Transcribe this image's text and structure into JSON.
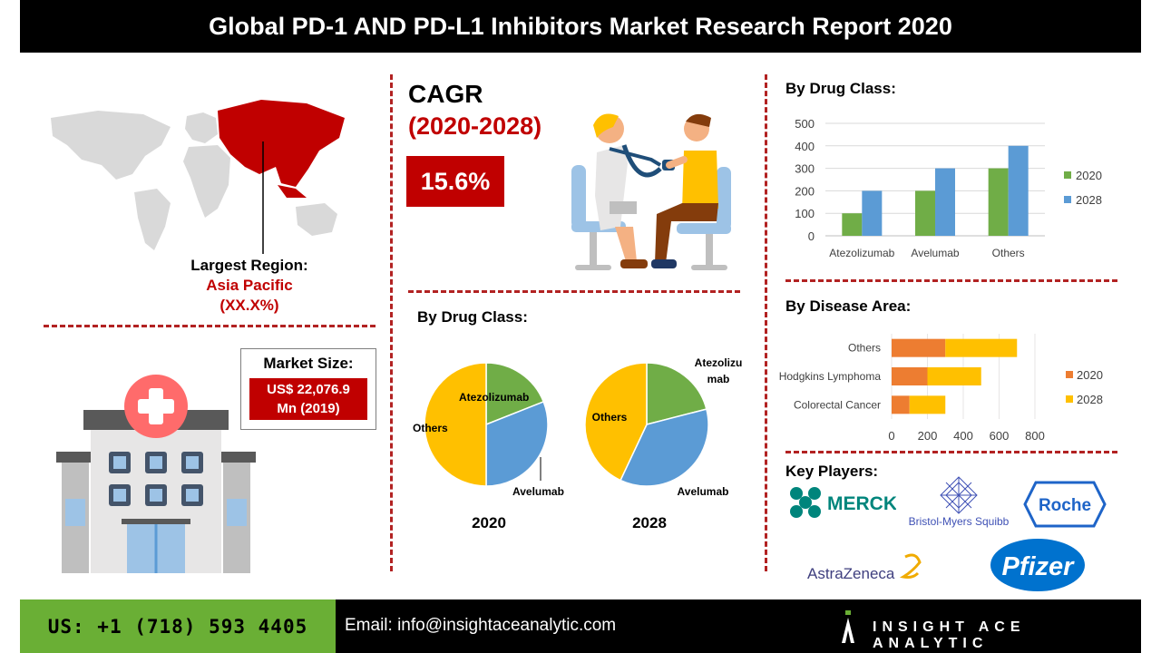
{
  "header": {
    "title": "Global PD-1 AND PD-L1 Inhibitors Market Research Report 2020"
  },
  "region": {
    "label": "Largest Region:",
    "name": "Asia Pacific",
    "share": "(XX.X%)"
  },
  "market_size": {
    "label": "Market Size:",
    "value_line1": "US$ 22,076.9",
    "value_line2": "Mn  (2019)"
  },
  "cagr": {
    "title": "CAGR",
    "period": "(2020-2028)",
    "value": "15.6%"
  },
  "pie_section": {
    "title": "By Drug Class:"
  },
  "bar_section": {
    "title": "By Drug Class:"
  },
  "hbar_section": {
    "title": "By Disease Area:"
  },
  "key_players": {
    "title": "Key Players:",
    "logos": [
      "MERCK",
      "Bristol-Myers Squibb",
      "Roche",
      "AstraZeneca",
      "Pfizer"
    ]
  },
  "footer": {
    "phone": "US: +1 (718) 593 4405",
    "email": "Email: info@insightaceanalytic.com",
    "brand": "INSIGHT ACE ANALYTIC"
  },
  "colors": {
    "green": "#70ad47",
    "blue": "#5b9bd5",
    "orange": "#ed7d31",
    "yellow": "#ffc000",
    "red": "#c00000"
  },
  "chart_data": [
    {
      "type": "pie",
      "title": "2020",
      "labels": [
        "Atezolizumab",
        "Avelumab",
        "Others"
      ],
      "values": [
        19,
        31,
        50
      ],
      "colors": [
        "#70ad47",
        "#5b9bd5",
        "#ffc000"
      ]
    },
    {
      "type": "pie",
      "title": "2028",
      "labels": [
        "Atezolizumab",
        "Avelumab",
        "Others"
      ],
      "values": [
        21,
        36,
        43
      ],
      "label_lines": [
        "Atezolizu",
        "mab"
      ],
      "colors": [
        "#70ad47",
        "#5b9bd5",
        "#ffc000"
      ]
    },
    {
      "type": "bar",
      "categories": [
        "Atezolizumab",
        "Avelumab",
        "Others"
      ],
      "series": [
        {
          "name": "2020",
          "values": [
            100,
            200,
            300
          ],
          "color": "#70ad47"
        },
        {
          "name": "2028",
          "values": [
            200,
            300,
            400
          ],
          "color": "#5b9bd5"
        }
      ],
      "ylim": [
        0,
        500
      ],
      "yticks": [
        0,
        100,
        200,
        300,
        400,
        500
      ],
      "grid": true,
      "legend": "right"
    },
    {
      "type": "bar",
      "orientation": "horizontal",
      "stacked": true,
      "categories": [
        "Colorectal Cancer",
        "Hodgkins Lymphoma",
        "Others"
      ],
      "series": [
        {
          "name": "2020",
          "values": [
            100,
            200,
            300
          ],
          "color": "#ed7d31"
        },
        {
          "name": "2028",
          "values": [
            200,
            300,
            400
          ],
          "color": "#ffc000"
        }
      ],
      "xlim": [
        0,
        800
      ],
      "xticks": [
        0,
        200,
        400,
        600,
        800
      ],
      "legend": "right"
    }
  ]
}
